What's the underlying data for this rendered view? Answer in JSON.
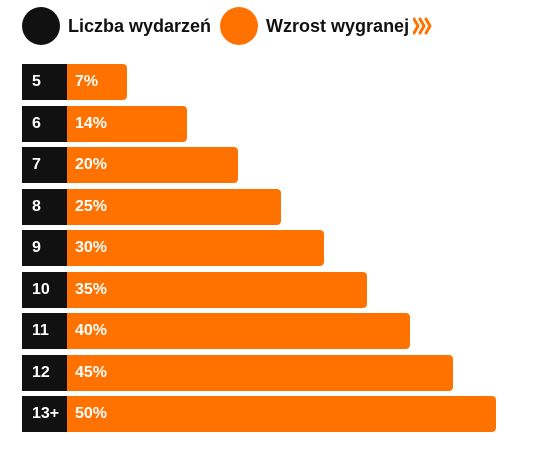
{
  "colors": {
    "events": "#111111",
    "boost": "#ff7200",
    "chevrons": "#ff7200"
  },
  "legend": {
    "events_label": "Liczba wydarzeń",
    "boost_label": "Wzrost wygranej",
    "chevron_icon": "triple-chevron-right-icon"
  },
  "rows": [
    {
      "events": "5",
      "boost": "7%",
      "boost_value": 7
    },
    {
      "events": "6",
      "boost": "14%",
      "boost_value": 14
    },
    {
      "events": "7",
      "boost": "20%",
      "boost_value": 20
    },
    {
      "events": "8",
      "boost": "25%",
      "boost_value": 25
    },
    {
      "events": "9",
      "boost": "30%",
      "boost_value": 30
    },
    {
      "events": "10",
      "boost": "35%",
      "boost_value": 35
    },
    {
      "events": "11",
      "boost": "40%",
      "boost_value": 40
    },
    {
      "events": "12",
      "boost": "45%",
      "boost_value": 45
    },
    {
      "events": "13+",
      "boost": "50%",
      "boost_value": 50
    }
  ]
}
